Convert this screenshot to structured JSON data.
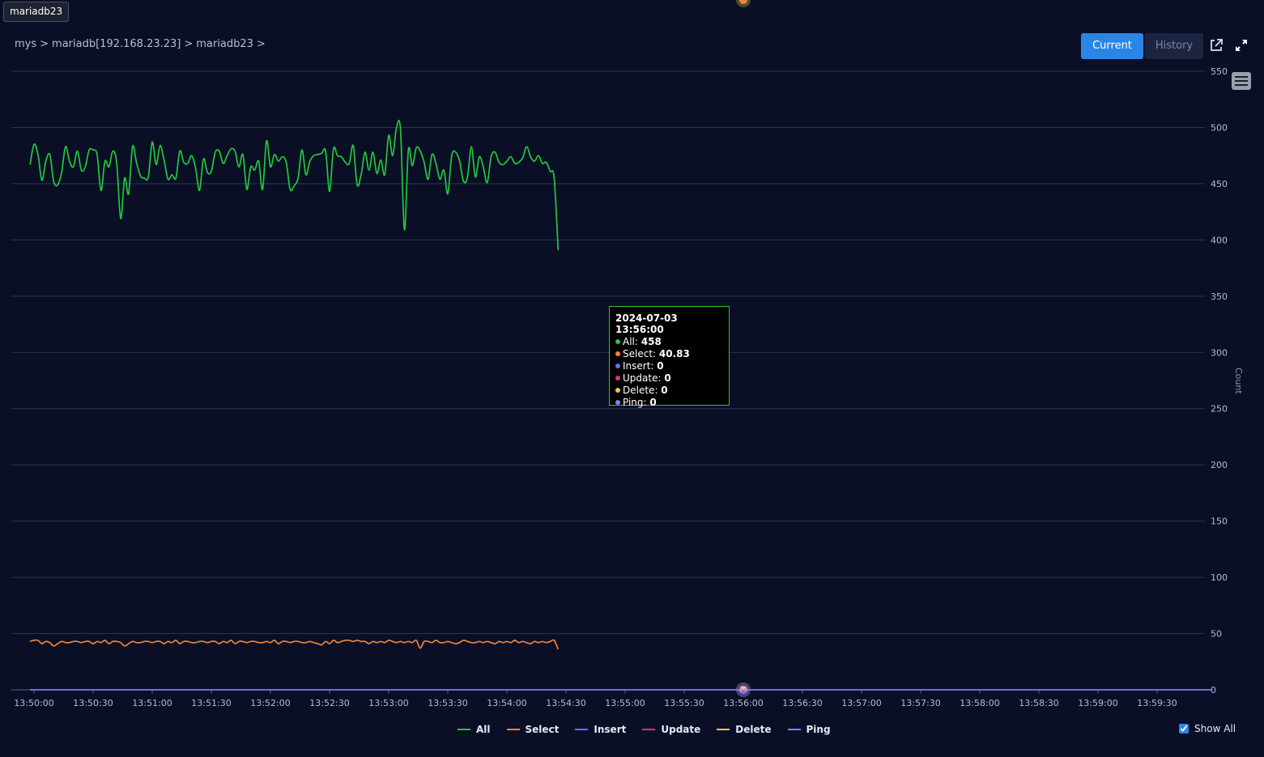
{
  "tag_label": "mariadb23",
  "breadcrumb": {
    "items": [
      "mys",
      ">",
      "mariadb[192.168.23.23]",
      ">",
      "mariadb23",
      ">"
    ]
  },
  "toolbar": {
    "current_label": "Current",
    "history_label": "History",
    "external_icon": "external-link-icon",
    "expand_icon": "expand-icon",
    "menu_icon": "hamburger-menu-icon"
  },
  "tooltip": {
    "title": "2024-07-03 13:56:00",
    "rows": [
      {
        "name": "All",
        "value": "458",
        "color": "#22c83a"
      },
      {
        "name": "Select",
        "value": "40.83",
        "color": "#f0843a"
      },
      {
        "name": "Insert",
        "value": "0",
        "color": "#6a6af5"
      },
      {
        "name": "Update",
        "value": "0",
        "color": "#e0307c"
      },
      {
        "name": "Delete",
        "value": "0",
        "color": "#f3c648"
      },
      {
        "name": "Ping",
        "value": "0",
        "color": "#7f84f5"
      }
    ]
  },
  "show_all_label": "Show All",
  "chart_data": {
    "type": "line",
    "title": "",
    "xlabel": "",
    "ylabel": "Count",
    "ylim": [
      0,
      550
    ],
    "yticks": [
      0,
      50,
      100,
      150,
      200,
      250,
      300,
      350,
      400,
      450,
      500,
      550
    ],
    "x_tick_labels": [
      "13:50:00",
      "13:50:30",
      "13:51:00",
      "13:51:30",
      "13:52:00",
      "13:52:30",
      "13:53:00",
      "13:53:30",
      "13:54:00",
      "13:54:30",
      "13:55:00",
      "13:55:30",
      "13:56:00",
      "13:56:30",
      "13:57:00",
      "13:57:30",
      "13:58:00",
      "13:58:30",
      "13:59:00",
      "13:59:30"
    ],
    "x_start": "13:49:58",
    "x_interval_seconds": 2,
    "x_range": [
      "13:50:00",
      "13:59:58"
    ],
    "grid": true,
    "legend_position": "bottom-center",
    "highlight_time": "13:56:00",
    "series": [
      {
        "name": "All",
        "color": "#22c83a",
        "values": [
          467,
          485,
          476,
          453,
          470,
          476,
          452,
          449,
          460,
          483,
          470,
          465,
          479,
          462,
          465,
          480,
          480,
          476,
          444,
          470,
          465,
          479,
          468,
          419,
          455,
          441,
          483,
          469,
          457,
          455,
          456,
          487,
          467,
          484,
          471,
          454,
          458,
          455,
          479,
          469,
          468,
          475,
          464,
          444,
          472,
          460,
          461,
          478,
          479,
          468,
          475,
          481,
          479,
          465,
          476,
          445,
          465,
          462,
          470,
          445,
          488,
          465,
          476,
          470,
          474,
          469,
          445,
          448,
          455,
          480,
          458,
          470,
          475,
          476,
          477,
          479,
          443,
          481,
          475,
          474,
          469,
          468,
          484,
          449,
          458,
          478,
          462,
          478,
          459,
          471,
          458,
          493,
          475,
          500,
          498,
          409,
          480,
          466,
          482,
          479,
          469,
          454,
          476,
          468,
          454,
          462,
          441,
          475,
          478,
          470,
          452,
          456,
          483,
          456,
          474,
          465,
          451,
          474,
          478,
          469,
          467,
          470,
          474,
          468,
          469,
          473,
          483,
          474,
          470,
          475,
          468,
          469,
          461,
          455,
          391
        ]
      },
      {
        "name": "Select",
        "color": "#f0843a",
        "values": [
          43,
          44,
          44,
          41,
          43,
          42,
          39,
          41,
          43,
          42,
          42,
          43,
          43,
          42,
          43,
          43,
          41,
          43,
          42,
          44,
          41,
          43,
          43,
          42,
          39,
          41,
          43,
          42,
          42,
          43,
          43,
          42,
          43,
          43,
          41,
          43,
          42,
          44,
          41,
          43,
          43,
          42,
          42,
          43,
          43,
          42,
          43,
          43,
          41,
          43,
          42,
          44,
          41,
          43,
          43,
          42,
          43,
          43,
          42,
          42,
          43,
          42,
          44,
          41,
          43,
          43,
          42,
          43,
          43,
          42,
          42,
          43,
          42,
          41,
          40,
          43,
          41,
          44,
          42,
          43,
          44,
          44,
          43,
          44,
          43,
          43,
          41,
          43,
          42,
          43,
          42,
          44,
          43,
          42,
          43,
          42,
          43,
          42,
          44,
          37,
          43,
          43,
          42,
          44,
          42,
          42,
          43,
          42,
          41,
          42,
          44,
          43,
          42,
          42,
          43,
          42,
          43,
          42,
          41,
          43,
          42,
          43,
          42,
          44,
          42,
          43,
          42,
          41,
          43,
          42,
          43,
          42,
          43,
          44,
          36
        ]
      },
      {
        "name": "Insert",
        "color": "#6a6af5",
        "values": [
          0,
          0
        ]
      },
      {
        "name": "Update",
        "color": "#e0307c",
        "values": [
          0,
          0
        ]
      },
      {
        "name": "Delete",
        "color": "#f3c648",
        "values": [
          0,
          0
        ]
      },
      {
        "name": "Ping",
        "color": "#7f84f5",
        "values": [
          0,
          0
        ]
      }
    ]
  }
}
